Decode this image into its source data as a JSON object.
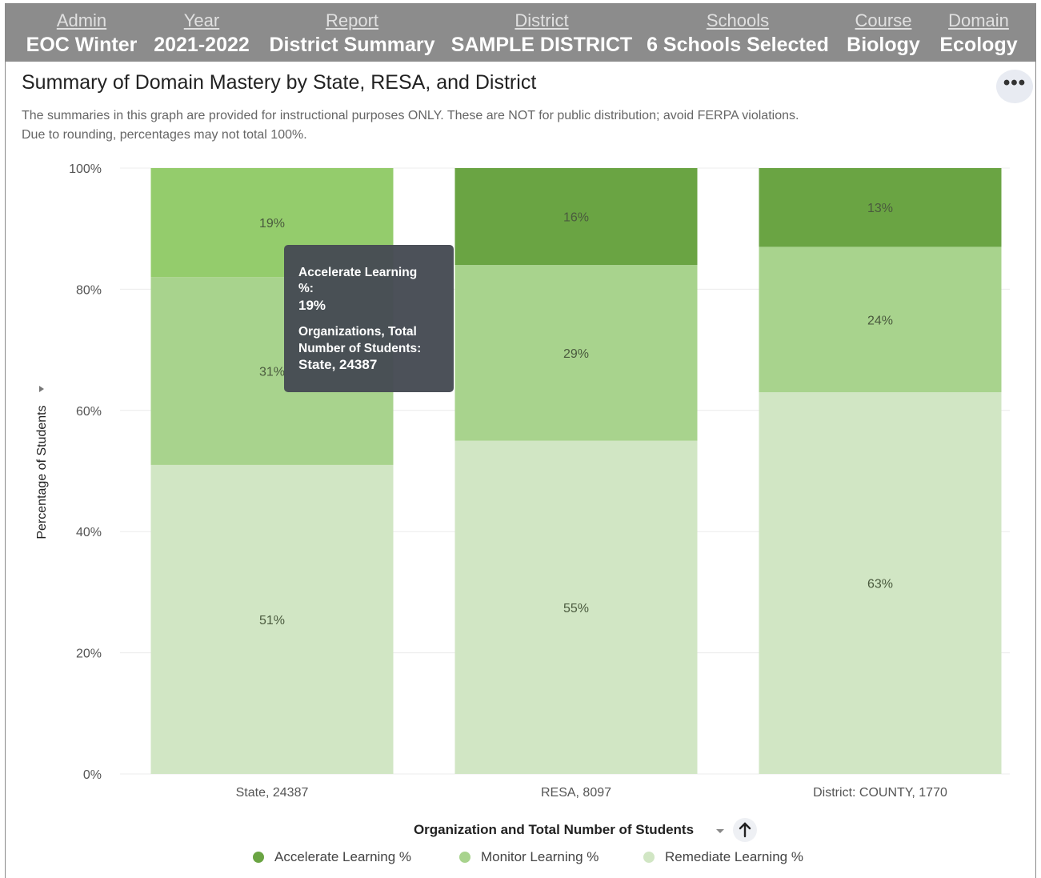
{
  "filters": [
    {
      "label": "Admin",
      "value": "EOC Winter"
    },
    {
      "label": "Year",
      "value": "2021-2022"
    },
    {
      "label": "Report",
      "value": "District Summary"
    },
    {
      "label": "District",
      "value": "SAMPLE DISTRICT"
    },
    {
      "label": "Schools",
      "value": "6 Schools Selected"
    },
    {
      "label": "Course",
      "value": "Biology"
    },
    {
      "label": "Domain",
      "value": "Ecology"
    }
  ],
  "more_icon": "more-horizontal-icon",
  "note_lines": [
    "The summaries in this graph are provided for instructional purposes ONLY. These are NOT for public distribution; avoid FERPA violations.",
    "Due to rounding, percentages may not total 100%."
  ],
  "chart_data": {
    "type": "bar",
    "stacked": true,
    "title": "Summary of Domain Mastery by State, RESA, and District",
    "xlabel": "Organization and Total Number of Students",
    "ylabel": "Percentage of Students",
    "ylim": [
      0,
      100
    ],
    "y_ticks": [
      "0%",
      "20%",
      "40%",
      "60%",
      "80%",
      "100%"
    ],
    "y_tick_values": [
      0,
      20,
      40,
      60,
      80,
      100
    ],
    "grid": true,
    "legend_position": "bottom",
    "categories": [
      "State, 24387",
      "RESA, 8097",
      "District: COUNTY, 1770"
    ],
    "series": [
      {
        "name": "Remediate Learning %",
        "values": [
          51,
          55,
          63
        ],
        "labels": [
          "51%",
          "55%",
          "63%"
        ],
        "color": "#d1e6c4"
      },
      {
        "name": "Monitor Learning %",
        "values": [
          31,
          29,
          24
        ],
        "labels": [
          "31%",
          "29%",
          "24%"
        ],
        "color": "#a8d38d"
      },
      {
        "name": "Accelerate Learning %",
        "values": [
          19,
          16,
          13
        ],
        "labels": [
          "19%",
          "16%",
          "13%"
        ],
        "color": "#6aa443"
      }
    ],
    "legend_order": [
      "Accelerate Learning %",
      "Monitor Learning %",
      "Remediate Learning %"
    ],
    "highlight_color": "#94cc6c",
    "tooltip": {
      "category_index": 0,
      "series": "Accelerate Learning %",
      "title": "Accelerate Learning",
      "title_cont": "%:",
      "value": "19%",
      "field_label_1": "Organizations, Total",
      "field_label_2": "Number of Students:",
      "field_value": "State, 24387"
    }
  }
}
